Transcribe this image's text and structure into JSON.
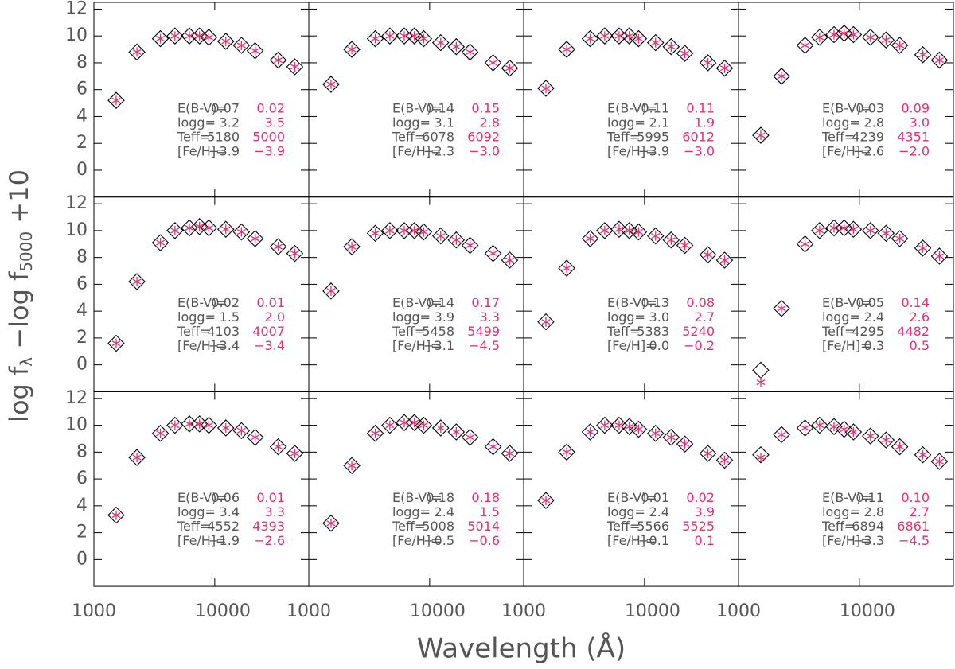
{
  "xlabel": "Wavelength (Å)",
  "ylabel": [
    "log f",
    "λ",
    " −log f",
    "5000",
    " +10"
  ],
  "chart_data": [
    {
      "type": "scatter",
      "log_x": true,
      "xlim": [
        1000,
        60000
      ],
      "xticks": [
        1000,
        10000
      ],
      "ylim": [
        -2,
        12.5
      ],
      "yticks": [
        0,
        2,
        4,
        6,
        8,
        10,
        12
      ],
      "x": [
        1528,
        2271,
        3551,
        4686,
        6166,
        7480,
        8932,
        12350,
        16620,
        21590,
        33500,
        46000
      ],
      "series": [
        {
          "marker": "diamond",
          "color": "#000000",
          "values": [
            5.2,
            8.8,
            9.8,
            10.0,
            10.0,
            10.0,
            9.9,
            9.6,
            9.3,
            8.9,
            8.2,
            7.7
          ]
        },
        {
          "marker": "asterisk",
          "color": "#e8306a",
          "values": [
            5.2,
            8.8,
            9.8,
            10.0,
            10.0,
            10.0,
            9.9,
            9.6,
            9.3,
            8.9,
            8.2,
            7.7
          ]
        }
      ],
      "params": [
        {
          "label": "E(B-V)=",
          "value": "0.07",
          "model": "0.02"
        },
        {
          "label": "logg=",
          "value": "3.2",
          "model": "3.5"
        },
        {
          "label": "Teff=",
          "value": "5180",
          "model": "5000"
        },
        {
          "label": "[Fe/H]=",
          "value": "−3.9",
          "model": "−3.9"
        }
      ]
    },
    {
      "type": "scatter",
      "log_x": true,
      "xlim": [
        1000,
        60000
      ],
      "xticks": [
        1000,
        10000
      ],
      "ylim": [
        -2,
        12.5
      ],
      "yticks": [
        0,
        2,
        4,
        6,
        8,
        10,
        12
      ],
      "x": [
        1528,
        2271,
        3551,
        4686,
        6166,
        7480,
        8932,
        12350,
        16620,
        21590,
        33500,
        46000
      ],
      "series": [
        {
          "marker": "diamond",
          "color": "#000000",
          "values": [
            6.4,
            9.0,
            9.8,
            10.0,
            10.0,
            10.0,
            9.8,
            9.5,
            9.2,
            8.8,
            8.0,
            7.6
          ]
        },
        {
          "marker": "asterisk",
          "color": "#e8306a",
          "values": [
            6.4,
            9.0,
            9.8,
            10.0,
            10.0,
            10.0,
            9.8,
            9.5,
            9.2,
            8.8,
            8.0,
            7.6
          ]
        }
      ],
      "params": [
        {
          "label": "E(B-V)=",
          "value": "0.14",
          "model": "0.15"
        },
        {
          "label": "logg=",
          "value": "3.1",
          "model": "2.8"
        },
        {
          "label": "Teff=",
          "value": "6078",
          "model": "6092"
        },
        {
          "label": "[Fe/H]=",
          "value": "−2.3",
          "model": "−3.0"
        }
      ]
    },
    {
      "type": "scatter",
      "log_x": true,
      "xlim": [
        1000,
        60000
      ],
      "xticks": [
        1000,
        10000
      ],
      "ylim": [
        -2,
        12.5
      ],
      "yticks": [
        0,
        2,
        4,
        6,
        8,
        10,
        12
      ],
      "x": [
        1528,
        2271,
        3551,
        4686,
        6166,
        7480,
        8932,
        12350,
        16620,
        21590,
        33500,
        46000
      ],
      "series": [
        {
          "marker": "diamond",
          "color": "#000000",
          "values": [
            6.1,
            9.0,
            9.8,
            10.0,
            10.0,
            10.0,
            9.8,
            9.5,
            9.2,
            8.7,
            8.0,
            7.6
          ]
        },
        {
          "marker": "asterisk",
          "color": "#e8306a",
          "values": [
            6.1,
            9.0,
            9.8,
            10.0,
            10.0,
            10.0,
            9.8,
            9.5,
            9.2,
            8.7,
            8.0,
            7.6
          ]
        }
      ],
      "params": [
        {
          "label": "E(B-V)=",
          "value": "0.11",
          "model": "0.11"
        },
        {
          "label": "logg=",
          "value": "2.1",
          "model": "1.9"
        },
        {
          "label": "Teff=",
          "value": "5995",
          "model": "6012"
        },
        {
          "label": "[Fe/H]=",
          "value": "−3.9",
          "model": "−3.0"
        }
      ]
    },
    {
      "type": "scatter",
      "log_x": true,
      "xlim": [
        1000,
        60000
      ],
      "xticks": [
        1000,
        10000
      ],
      "ylim": [
        -2,
        12.5
      ],
      "yticks": [
        0,
        2,
        4,
        6,
        8,
        10,
        12
      ],
      "x": [
        1528,
        2271,
        3551,
        4686,
        6166,
        7480,
        8932,
        12350,
        16620,
        21590,
        33500,
        46000
      ],
      "series": [
        {
          "marker": "diamond",
          "color": "#000000",
          "values": [
            2.6,
            7.0,
            9.3,
            9.9,
            10.1,
            10.2,
            10.1,
            9.9,
            9.7,
            9.3,
            8.6,
            8.2
          ]
        },
        {
          "marker": "asterisk",
          "color": "#e8306a",
          "values": [
            2.6,
            7.0,
            9.3,
            9.9,
            10.1,
            10.2,
            10.1,
            9.9,
            9.7,
            9.3,
            8.6,
            8.2
          ]
        }
      ],
      "params": [
        {
          "label": "E(B-V)=",
          "value": "0.03",
          "model": "0.09"
        },
        {
          "label": "logg=",
          "value": "2.8",
          "model": "3.0"
        },
        {
          "label": "Teff=",
          "value": "4239",
          "model": "4351"
        },
        {
          "label": "[Fe/H]=",
          "value": "−2.6",
          "model": "−2.0"
        }
      ]
    },
    {
      "type": "scatter",
      "log_x": true,
      "xlim": [
        1000,
        60000
      ],
      "xticks": [
        1000,
        10000
      ],
      "ylim": [
        -2,
        12.5
      ],
      "yticks": [
        0,
        2,
        4,
        6,
        8,
        10,
        12
      ],
      "x": [
        1528,
        2271,
        3551,
        4686,
        6166,
        7480,
        8932,
        12350,
        16620,
        21590,
        33500,
        46000
      ],
      "series": [
        {
          "marker": "diamond",
          "color": "#000000",
          "values": [
            1.6,
            6.2,
            9.1,
            10.0,
            10.2,
            10.3,
            10.2,
            10.1,
            9.9,
            9.4,
            8.8,
            8.3
          ]
        },
        {
          "marker": "asterisk",
          "color": "#e8306a",
          "values": [
            1.6,
            6.2,
            9.1,
            10.0,
            10.2,
            10.3,
            10.2,
            10.1,
            9.9,
            9.4,
            8.8,
            8.3
          ]
        }
      ],
      "params": [
        {
          "label": "E(B-V)=",
          "value": "0.02",
          "model": "0.01"
        },
        {
          "label": "logg=",
          "value": "1.5",
          "model": "2.0"
        },
        {
          "label": "Teff=",
          "value": "4103",
          "model": "4007"
        },
        {
          "label": "[Fe/H]=",
          "value": "−3.4",
          "model": "−3.4"
        }
      ]
    },
    {
      "type": "scatter",
      "log_x": true,
      "xlim": [
        1000,
        60000
      ],
      "xticks": [
        1000,
        10000
      ],
      "ylim": [
        -2,
        12.5
      ],
      "yticks": [
        0,
        2,
        4,
        6,
        8,
        10,
        12
      ],
      "x": [
        1528,
        2271,
        3551,
        4686,
        6166,
        7480,
        8932,
        12350,
        16620,
        21590,
        33500,
        46000
      ],
      "series": [
        {
          "marker": "diamond",
          "color": "#000000",
          "values": [
            5.5,
            8.8,
            9.8,
            10.0,
            10.0,
            10.0,
            9.9,
            9.6,
            9.3,
            8.9,
            8.3,
            7.8
          ]
        },
        {
          "marker": "asterisk",
          "color": "#e8306a",
          "values": [
            5.5,
            8.8,
            9.8,
            10.0,
            10.0,
            10.0,
            9.9,
            9.6,
            9.3,
            8.9,
            8.3,
            7.8
          ]
        }
      ],
      "params": [
        {
          "label": "E(B-V)=",
          "value": "0.14",
          "model": "0.17"
        },
        {
          "label": "logg=",
          "value": "3.9",
          "model": "3.3"
        },
        {
          "label": "Teff=",
          "value": "5458",
          "model": "5499"
        },
        {
          "label": "[Fe/H]=",
          "value": "−3.1",
          "model": "−4.5"
        }
      ]
    },
    {
      "type": "scatter",
      "log_x": true,
      "xlim": [
        1000,
        60000
      ],
      "xticks": [
        1000,
        10000
      ],
      "ylim": [
        -2,
        12.5
      ],
      "yticks": [
        0,
        2,
        4,
        6,
        8,
        10,
        12
      ],
      "x": [
        1528,
        2271,
        3551,
        4686,
        6166,
        7480,
        8932,
        12350,
        16620,
        21590,
        33500,
        46000
      ],
      "series": [
        {
          "marker": "diamond",
          "color": "#000000",
          "values": [
            3.2,
            7.2,
            9.4,
            10.0,
            10.1,
            10.0,
            9.9,
            9.6,
            9.3,
            8.9,
            8.2,
            7.8
          ]
        },
        {
          "marker": "asterisk",
          "color": "#e8306a",
          "values": [
            3.2,
            7.2,
            9.4,
            10.0,
            10.1,
            10.0,
            9.9,
            9.6,
            9.3,
            8.9,
            8.2,
            7.8
          ]
        }
      ],
      "params": [
        {
          "label": "E(B-V)=",
          "value": "0.13",
          "model": "0.08"
        },
        {
          "label": "logg=",
          "value": "3.0",
          "model": "2.7"
        },
        {
          "label": "Teff=",
          "value": "5383",
          "model": "5240"
        },
        {
          "label": "[Fe/H]=",
          "value": "0.0",
          "model": "−0.2"
        }
      ]
    },
    {
      "type": "scatter",
      "log_x": true,
      "xlim": [
        1000,
        60000
      ],
      "xticks": [
        1000,
        10000
      ],
      "ylim": [
        -2,
        12.5
      ],
      "yticks": [
        0,
        2,
        4,
        6,
        8,
        10,
        12
      ],
      "x": [
        1528,
        2271,
        3551,
        4686,
        6166,
        7480,
        8932,
        12350,
        16620,
        21590,
        33500,
        46000
      ],
      "series": [
        {
          "marker": "diamond",
          "color": "#000000",
          "values": [
            -0.4,
            4.2,
            9.0,
            10.0,
            10.2,
            10.2,
            10.1,
            10.0,
            9.8,
            9.4,
            8.7,
            8.1
          ]
        },
        {
          "marker": "asterisk",
          "color": "#e8306a",
          "values": [
            -1.3,
            4.2,
            9.0,
            10.0,
            10.2,
            10.2,
            10.1,
            10.0,
            9.8,
            9.4,
            8.7,
            8.1
          ]
        }
      ],
      "params": [
        {
          "label": "E(B-V)=",
          "value": "0.05",
          "model": "0.14"
        },
        {
          "label": "logg=",
          "value": "2.4",
          "model": "2.6"
        },
        {
          "label": "Teff=",
          "value": "4295",
          "model": "4482"
        },
        {
          "label": "[Fe/H]=",
          "value": "0.3",
          "model": "0.5"
        }
      ]
    },
    {
      "type": "scatter",
      "log_x": true,
      "xlim": [
        1000,
        60000
      ],
      "xticks": [
        1000,
        10000
      ],
      "ylim": [
        -2,
        12.5
      ],
      "yticks": [
        0,
        2,
        4,
        6,
        8,
        10,
        12
      ],
      "x": [
        1528,
        2271,
        3551,
        4686,
        6166,
        7480,
        8932,
        12350,
        16620,
        21590,
        33500,
        46000
      ],
      "series": [
        {
          "marker": "diamond",
          "color": "#000000",
          "values": [
            3.3,
            7.6,
            9.4,
            10.0,
            10.1,
            10.1,
            10.0,
            9.8,
            9.6,
            9.1,
            8.4,
            7.9
          ]
        },
        {
          "marker": "asterisk",
          "color": "#e8306a",
          "values": [
            3.3,
            7.6,
            9.4,
            10.0,
            10.1,
            10.1,
            10.0,
            9.8,
            9.6,
            9.1,
            8.4,
            7.9
          ]
        }
      ],
      "params": [
        {
          "label": "E(B-V)=",
          "value": "0.06",
          "model": "0.01"
        },
        {
          "label": "logg=",
          "value": "3.4",
          "model": "3.3"
        },
        {
          "label": "Teff=",
          "value": "4552",
          "model": "4393"
        },
        {
          "label": "[Fe/H]=",
          "value": "−1.9",
          "model": "−2.6"
        }
      ]
    },
    {
      "type": "scatter",
      "log_x": true,
      "xlim": [
        1000,
        60000
      ],
      "xticks": [
        1000,
        10000
      ],
      "ylim": [
        -2,
        12.5
      ],
      "yticks": [
        0,
        2,
        4,
        6,
        8,
        10,
        12
      ],
      "x": [
        1528,
        2271,
        3551,
        4686,
        6166,
        7480,
        8932,
        12350,
        16620,
        21590,
        33500,
        46000
      ],
      "series": [
        {
          "marker": "diamond",
          "color": "#000000",
          "values": [
            2.7,
            7.0,
            9.4,
            10.0,
            10.2,
            10.2,
            10.0,
            9.8,
            9.5,
            9.1,
            8.4,
            7.9
          ]
        },
        {
          "marker": "asterisk",
          "color": "#e8306a",
          "values": [
            2.7,
            7.0,
            9.4,
            10.0,
            10.2,
            10.2,
            10.0,
            9.8,
            9.5,
            9.1,
            8.4,
            7.9
          ]
        }
      ],
      "params": [
        {
          "label": "E(B-V)=",
          "value": "0.18",
          "model": "0.18"
        },
        {
          "label": "logg=",
          "value": "2.4",
          "model": "1.5"
        },
        {
          "label": "Teff=",
          "value": "5008",
          "model": "5014"
        },
        {
          "label": "[Fe/H]=",
          "value": "−0.5",
          "model": "−0.6"
        }
      ]
    },
    {
      "type": "scatter",
      "log_x": true,
      "xlim": [
        1000,
        60000
      ],
      "xticks": [
        1000,
        10000
      ],
      "ylim": [
        -2,
        12.5
      ],
      "yticks": [
        0,
        2,
        4,
        6,
        8,
        10,
        12
      ],
      "x": [
        1528,
        2271,
        3551,
        4686,
        6166,
        7480,
        8932,
        12350,
        16620,
        21590,
        33500,
        46000
      ],
      "series": [
        {
          "marker": "diamond",
          "color": "#000000",
          "values": [
            4.4,
            8.0,
            9.5,
            10.0,
            10.0,
            9.9,
            9.7,
            9.4,
            9.1,
            8.6,
            7.9,
            7.4
          ]
        },
        {
          "marker": "asterisk",
          "color": "#e8306a",
          "values": [
            4.4,
            8.0,
            9.5,
            10.0,
            10.0,
            9.9,
            9.7,
            9.4,
            9.1,
            8.6,
            7.9,
            7.4
          ]
        }
      ],
      "params": [
        {
          "label": "E(B-V)=",
          "value": "0.01",
          "model": "0.02"
        },
        {
          "label": "logg=",
          "value": "2.4",
          "model": "3.9"
        },
        {
          "label": "Teff=",
          "value": "5566",
          "model": "5525"
        },
        {
          "label": "[Fe/H]=",
          "value": "−0.1",
          "model": "0.1"
        }
      ]
    },
    {
      "type": "scatter",
      "log_x": true,
      "xlim": [
        1000,
        60000
      ],
      "xticks": [
        1000,
        10000
      ],
      "ylim": [
        -2,
        12.5
      ],
      "yticks": [
        0,
        2,
        4,
        6,
        8,
        10,
        12
      ],
      "x": [
        1528,
        2271,
        3551,
        4686,
        6166,
        7480,
        8932,
        12350,
        16620,
        21590,
        33500,
        46000
      ],
      "series": [
        {
          "marker": "diamond",
          "color": "#000000",
          "values": [
            7.8,
            9.3,
            9.8,
            10.0,
            9.9,
            9.7,
            9.5,
            9.2,
            8.9,
            8.4,
            7.8,
            7.3
          ]
        },
        {
          "marker": "asterisk",
          "color": "#e8306a",
          "values": [
            7.6,
            9.3,
            9.8,
            10.0,
            9.9,
            9.7,
            9.5,
            9.2,
            8.9,
            8.4,
            7.8,
            7.3
          ]
        }
      ],
      "params": [
        {
          "label": "E(B-V)=",
          "value": "0.11",
          "model": "0.10"
        },
        {
          "label": "logg=",
          "value": "2.8",
          "model": "2.7"
        },
        {
          "label": "Teff=",
          "value": "6894",
          "model": "6861"
        },
        {
          "label": "[Fe/H]=",
          "value": "−3.3",
          "model": "−4.5"
        }
      ]
    }
  ]
}
